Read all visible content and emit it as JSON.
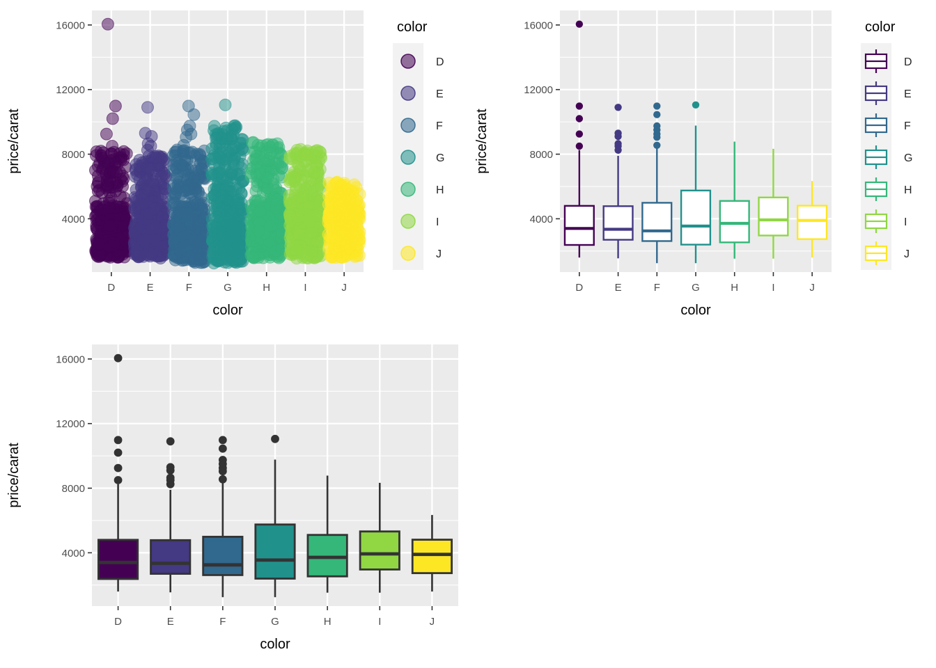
{
  "figure": {
    "background": "#FFFFFF",
    "theme": {
      "panel_bg": "#EBEBEB",
      "grid_color": "#FFFFFF",
      "tick_text_color": "#4D4D4D",
      "axis_title_color": "#000000",
      "tick_mark_color": "#333333",
      "legend_key_bg": "#F2F2F2",
      "legend_text_color": "#262626",
      "dark_outline": "#333333"
    }
  },
  "chart_data": [
    {
      "id": "jitter-scatter",
      "type": "scatter",
      "position": "top-left",
      "xlabel": "color",
      "ylabel": "price/carat",
      "categories": [
        "D",
        "E",
        "F",
        "G",
        "H",
        "I",
        "J"
      ],
      "y_major_ticks": [
        4000,
        8000,
        12000,
        16000
      ],
      "y_minor_ticks": [
        2000,
        6000,
        10000,
        14000
      ],
      "ylim": [
        700,
        16900
      ],
      "grid": true,
      "point_radius": 8.5,
      "point_alpha": 0.5,
      "n_points": [
        380,
        420,
        420,
        450,
        400,
        350,
        260
      ],
      "legend": {
        "title": "color",
        "glyph": "point",
        "position": "right",
        "entries": [
          "D",
          "E",
          "F",
          "G",
          "H",
          "I",
          "J"
        ]
      },
      "groups": [
        {
          "label": "D",
          "color": "#440154",
          "low": 1600,
          "q1": 2380,
          "median": 3400,
          "q3": 4800,
          "high": 8250,
          "outliers": [
            8500,
            9250,
            10200,
            10980,
            16050
          ]
        },
        {
          "label": "E",
          "color": "#443983",
          "low": 1550,
          "q1": 2700,
          "median": 3350,
          "q3": 4780,
          "high": 7900,
          "outliers": [
            8250,
            8500,
            8650,
            9100,
            9300,
            10900
          ]
        },
        {
          "label": "F",
          "color": "#31688E",
          "low": 1250,
          "q1": 2620,
          "median": 3250,
          "q3": 4990,
          "high": 8350,
          "outliers": [
            8550,
            9050,
            9250,
            9500,
            9750,
            10450,
            10980
          ]
        },
        {
          "label": "G",
          "color": "#21918C",
          "low": 1250,
          "q1": 2400,
          "median": 3550,
          "q3": 5750,
          "high": 9770,
          "outliers": [
            11050
          ]
        },
        {
          "label": "H",
          "color": "#35B779",
          "low": 1530,
          "q1": 2540,
          "median": 3715,
          "q3": 5105,
          "high": 8780,
          "outliers": []
        },
        {
          "label": "I",
          "color": "#90D743",
          "low": 1530,
          "q1": 2965,
          "median": 3930,
          "q3": 5320,
          "high": 8330,
          "outliers": []
        },
        {
          "label": "J",
          "color": "#FDE725",
          "low": 1600,
          "q1": 2740,
          "median": 3900,
          "q3": 4810,
          "high": 6340,
          "outliers": []
        }
      ]
    },
    {
      "id": "outline-boxplot",
      "type": "boxplot",
      "style": "outline",
      "position": "top-right",
      "xlabel": "color",
      "ylabel": "price/carat",
      "categories": [
        "D",
        "E",
        "F",
        "G",
        "H",
        "I",
        "J"
      ],
      "y_major_ticks": [
        4000,
        8000,
        12000,
        16000
      ],
      "y_minor_ticks": [
        2000,
        6000,
        10000,
        14000
      ],
      "ylim": [
        700,
        16900
      ],
      "grid": true,
      "legend": {
        "title": "color",
        "glyph": "boxplot",
        "position": "right",
        "entries": [
          "D",
          "E",
          "F",
          "G",
          "H",
          "I",
          "J"
        ]
      },
      "groups": [
        {
          "label": "D",
          "color": "#440154",
          "low": 1600,
          "q1": 2380,
          "median": 3400,
          "q3": 4800,
          "high": 8250,
          "outliers": [
            8500,
            9250,
            10200,
            10980,
            16050
          ]
        },
        {
          "label": "E",
          "color": "#443983",
          "low": 1550,
          "q1": 2700,
          "median": 3350,
          "q3": 4780,
          "high": 7900,
          "outliers": [
            8250,
            8500,
            8650,
            9100,
            9300,
            10900
          ]
        },
        {
          "label": "F",
          "color": "#31688E",
          "low": 1250,
          "q1": 2620,
          "median": 3250,
          "q3": 4990,
          "high": 8350,
          "outliers": [
            8550,
            9050,
            9250,
            9500,
            9750,
            10450,
            10980
          ]
        },
        {
          "label": "G",
          "color": "#21918C",
          "low": 1250,
          "q1": 2400,
          "median": 3550,
          "q3": 5750,
          "high": 9770,
          "outliers": [
            11050
          ]
        },
        {
          "label": "H",
          "color": "#35B779",
          "low": 1530,
          "q1": 2540,
          "median": 3715,
          "q3": 5105,
          "high": 8780,
          "outliers": []
        },
        {
          "label": "I",
          "color": "#90D743",
          "low": 1530,
          "q1": 2965,
          "median": 3930,
          "q3": 5320,
          "high": 8330,
          "outliers": []
        },
        {
          "label": "J",
          "color": "#FDE725",
          "low": 1600,
          "q1": 2740,
          "median": 3900,
          "q3": 4810,
          "high": 6340,
          "outliers": []
        }
      ]
    },
    {
      "id": "filled-boxplot",
      "type": "boxplot",
      "style": "filled",
      "position": "bottom-left",
      "xlabel": "color",
      "ylabel": "price/carat",
      "categories": [
        "D",
        "E",
        "F",
        "G",
        "H",
        "I",
        "J"
      ],
      "y_major_ticks": [
        4000,
        8000,
        12000,
        16000
      ],
      "y_minor_ticks": [
        2000,
        6000,
        10000,
        14000
      ],
      "ylim": [
        700,
        16900
      ],
      "grid": true,
      "legend": null,
      "groups": [
        {
          "label": "D",
          "color": "#440154",
          "low": 1600,
          "q1": 2380,
          "median": 3400,
          "q3": 4800,
          "high": 8250,
          "outliers": [
            8500,
            9250,
            10200,
            10980,
            16050
          ]
        },
        {
          "label": "E",
          "color": "#443983",
          "low": 1550,
          "q1": 2700,
          "median": 3350,
          "q3": 4780,
          "high": 7900,
          "outliers": [
            8250,
            8500,
            8650,
            9100,
            9300,
            10900
          ]
        },
        {
          "label": "F",
          "color": "#31688E",
          "low": 1250,
          "q1": 2620,
          "median": 3250,
          "q3": 4990,
          "high": 8350,
          "outliers": [
            8550,
            9050,
            9250,
            9500,
            9750,
            10450,
            10980
          ]
        },
        {
          "label": "G",
          "color": "#21918C",
          "low": 1250,
          "q1": 2400,
          "median": 3550,
          "q3": 5750,
          "high": 9770,
          "outliers": [
            11050
          ]
        },
        {
          "label": "H",
          "color": "#35B779",
          "low": 1530,
          "q1": 2540,
          "median": 3715,
          "q3": 5105,
          "high": 8780,
          "outliers": []
        },
        {
          "label": "I",
          "color": "#90D743",
          "low": 1530,
          "q1": 2965,
          "median": 3930,
          "q3": 5320,
          "high": 8330,
          "outliers": []
        },
        {
          "label": "J",
          "color": "#FDE725",
          "low": 1600,
          "q1": 2740,
          "median": 3900,
          "q3": 4810,
          "high": 6340,
          "outliers": []
        }
      ]
    }
  ]
}
